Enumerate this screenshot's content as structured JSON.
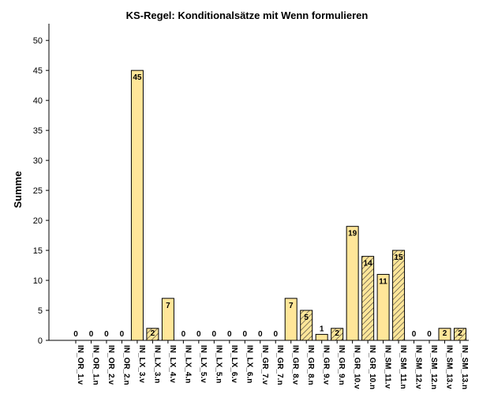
{
  "chart_data": {
    "type": "bar",
    "title": "KS-Regel: Konditionalsätze mit Wenn formulieren",
    "ylabel": "Summe",
    "xlabel": "",
    "ylim": [
      0,
      52
    ],
    "yticks": [
      0,
      5,
      10,
      15,
      20,
      25,
      30,
      35,
      40,
      45,
      50
    ],
    "grid": false,
    "legend": "none",
    "colors": {
      "bar_fill": "#ffe699",
      "bar_stroke": "#000000",
      "hatch": "#333333"
    },
    "categories": [
      "IN_OR_1.v",
      "IN_OR_1.n",
      "IN_OR_2.v",
      "IN_OR_2.n",
      "IN_LX_3.v",
      "IN_LX_3.n",
      "IN_LX_4.v",
      "IN_LX_4.n",
      "IN_LX_5.v",
      "IN_LX_5.n",
      "IN_LX_6.v",
      "IN_LX_6.n",
      "IN_GR_7.v",
      "IN_GR_7.n",
      "IN_GR_8.v",
      "IN_GR_8.n",
      "IN_GR_9.v",
      "IN_GR_9.n",
      "IN_GR_10.v",
      "IN_GR_10.n",
      "IN_SM_11.v",
      "IN_SM_11.n",
      "IN_SM_12.v",
      "IN_SM_12.n",
      "IN_SM_13.v",
      "IN_SM_13.n"
    ],
    "values": [
      0,
      0,
      0,
      0,
      45,
      2,
      7,
      0,
      0,
      0,
      0,
      0,
      0,
      0,
      7,
      5,
      1,
      2,
      19,
      14,
      11,
      15,
      0,
      0,
      2,
      2
    ],
    "hatched": [
      false,
      false,
      false,
      false,
      false,
      true,
      false,
      false,
      false,
      false,
      false,
      false,
      false,
      false,
      false,
      true,
      false,
      true,
      false,
      true,
      false,
      true,
      false,
      false,
      false,
      true
    ]
  }
}
